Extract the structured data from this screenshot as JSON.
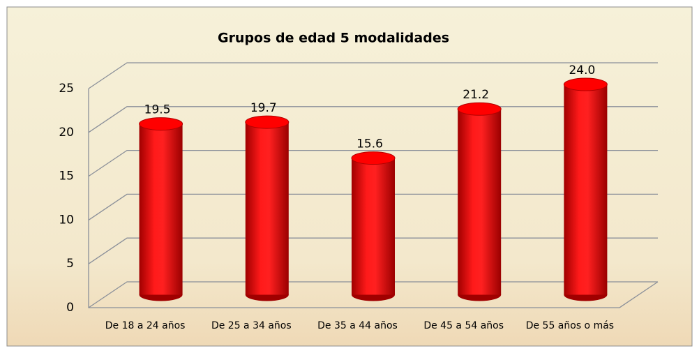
{
  "chart_data": {
    "type": "bar",
    "title": "Grupos de edad 5 modalidades",
    "categories": [
      "De 18 a 24 años",
      "De 25 a 34 años",
      "De 35 a 44 años",
      "De 45 a 54 años",
      "De 55 años o más"
    ],
    "values": [
      19.5,
      19.7,
      15.6,
      21.2,
      24.0
    ],
    "value_labels": [
      "19.5",
      "19.7",
      "15.6",
      "21.2",
      "24.0"
    ],
    "color": "#ff0000",
    "ylim": [
      0,
      25
    ],
    "yticks": [
      0,
      5,
      10,
      15,
      20,
      25
    ],
    "grid": true
  }
}
